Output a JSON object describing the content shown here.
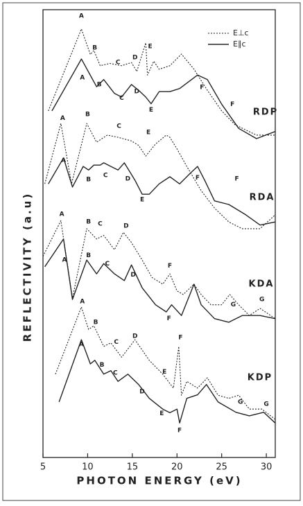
{
  "chart_data": {
    "type": "line",
    "x_label": "PHOTON ENERGY (eV)",
    "y_label": "REFLECTIVITY (a.u)",
    "xlim": [
      5,
      31
    ],
    "xticks": [
      5,
      10,
      15,
      20,
      25,
      30
    ],
    "ylim": [
      0,
      100
    ],
    "color": "#222222",
    "legend": [
      {
        "name": "E⊥c",
        "dash": "2,2"
      },
      {
        "name": "E∥c",
        "dash": "none"
      }
    ],
    "samples": [
      {
        "name": "RDP",
        "curves": [
          {
            "x": [
              5.6,
              9.3,
              10.3,
              10.7,
              11.4,
              12.5,
              13.8,
              14.9,
              15.5,
              16.5,
              16.7,
              17.4,
              18,
              19.2,
              20.5,
              21.9,
              23.4,
              25,
              26.5,
              28.9,
              31
            ],
            "values": [
              77.4,
              95.7,
              90,
              90.9,
              87.5,
              88,
              87.5,
              88.2,
              86.2,
              92.6,
              85.4,
              88.5,
              86.7,
              87.5,
              90.1,
              86.7,
              82,
              77.4,
              74.3,
              72,
              72
            ]
          },
          {
            "x": [
              6,
              9.3,
              11,
              11.8,
              13,
              13.8,
              14.9,
              15.7,
              16.5,
              17.1,
              18,
              19.2,
              20.3,
              22.3,
              23.4,
              25,
              26.9,
              28.9,
              31
            ],
            "values": [
              77.4,
              89,
              82.8,
              84.4,
              81.3,
              80.5,
              83.3,
              82,
              80.5,
              79,
              81.7,
              81.7,
              82.4,
              85.4,
              84.4,
              78.9,
              73.5,
              71.2,
              72.8
            ]
          }
        ],
        "labels": [
          {
            "text": "A",
            "x": 9.3,
            "y": 98.6
          },
          {
            "text": "B",
            "x": 10.8,
            "y": 91.5
          },
          {
            "text": "C",
            "x": 13.4,
            "y": 88.2
          },
          {
            "text": "D",
            "x": 15.3,
            "y": 89.3
          },
          {
            "text": "E",
            "x": 17,
            "y": 91.8
          },
          {
            "text": "A",
            "x": 9.4,
            "y": 84.8
          },
          {
            "text": "B",
            "x": 11.3,
            "y": 83.3
          },
          {
            "text": "C",
            "x": 13.8,
            "y": 80.3
          },
          {
            "text": "D",
            "x": 15.5,
            "y": 81.7
          },
          {
            "text": "E",
            "x": 17.1,
            "y": 77.6
          },
          {
            "text": "F",
            "x": 22.8,
            "y": 82.7
          },
          {
            "text": "F",
            "x": 26.2,
            "y": 78.9
          }
        ]
      },
      {
        "name": "RDA",
        "curves": [
          {
            "x": [
              5.2,
              7,
              8.2,
              9.9,
              11,
              12.2,
              13.4,
              14.9,
              15.7,
              16.5,
              17.6,
              18.8,
              19.2,
              20,
              21.1,
              22.7,
              24.2,
              25.8,
              27.3,
              29.3,
              31
            ],
            "values": [
              61.1,
              74.6,
              61.1,
              74.6,
              70.4,
              72,
              71.5,
              70.7,
              69.7,
              67.3,
              70,
              72,
              71.5,
              68.9,
              65,
              59.6,
              55.7,
              52.6,
              51.1,
              51.1,
              54.2
            ]
          },
          {
            "x": [
              5.6,
              7.3,
              8.3,
              9.5,
              10.1,
              10.7,
              11.4,
              11.8,
              12.6,
              13.4,
              14.1,
              15.3,
              16.1,
              16.9,
              18,
              19.2,
              20.3,
              21.5,
              22.3,
              23.1,
              24.2,
              25.8,
              27.7,
              29.3,
              31
            ],
            "values": [
              61.1,
              66.9,
              60.4,
              65,
              64.2,
              65.3,
              65.3,
              65.8,
              65,
              64.2,
              65.8,
              61.9,
              58.8,
              58.8,
              61.1,
              62.7,
              61.1,
              63.5,
              65,
              61.9,
              57.3,
              56.5,
              54.2,
              51.9,
              52.6
            ]
          }
        ],
        "labels": [
          {
            "text": "A",
            "x": 7.2,
            "y": 75.8
          },
          {
            "text": "B",
            "x": 10,
            "y": 76.6
          },
          {
            "text": "C",
            "x": 13.5,
            "y": 74
          },
          {
            "text": "E",
            "x": 16.8,
            "y": 72.6
          },
          {
            "text": "A",
            "x": 7.3,
            "y": 66.3
          },
          {
            "text": "B",
            "x": 10.1,
            "y": 62.1
          },
          {
            "text": "C",
            "x": 12,
            "y": 63
          },
          {
            "text": "D",
            "x": 14.5,
            "y": 62.2
          },
          {
            "text": "E",
            "x": 16.1,
            "y": 57.6
          },
          {
            "text": "F",
            "x": 22.3,
            "y": 62.5
          },
          {
            "text": "F",
            "x": 26.7,
            "y": 62.2
          }
        ]
      },
      {
        "name": "KDA",
        "curves": [
          {
            "x": [
              5,
              7,
              8.3,
              9.9,
              11,
              11.8,
              13,
              14,
              14.9,
              16.1,
              17.2,
              18.4,
              19.2,
              20,
              20.7,
              21.9,
              22.7,
              23.8,
              25,
              25.9,
              26.9,
              28.1,
              29.3,
              31
            ],
            "values": [
              44.9,
              52.9,
              35.6,
              51.1,
              48.8,
              49.6,
              46.4,
              50.3,
              48,
              44.1,
              40.2,
              38.7,
              41,
              37.2,
              36.4,
              38.7,
              36.4,
              34.1,
              34.1,
              36.4,
              34.1,
              31.7,
              33.3,
              31
            ]
          },
          {
            "x": [
              5.2,
              7.3,
              8.3,
              9.9,
              11,
              11.8,
              13,
              14.1,
              14.9,
              16.1,
              17.6,
              18.8,
              19.4,
              20.5,
              21.9,
              22.7,
              24.2,
              25.8,
              27.3,
              29.3,
              31
            ],
            "values": [
              42.6,
              48.8,
              35.3,
              44.1,
              41,
              43.3,
              41,
              39.5,
              43,
              37.9,
              34.1,
              32.5,
              34.1,
              31.7,
              38.7,
              34.1,
              31,
              30.2,
              31.7,
              31.7,
              31
            ]
          }
        ],
        "labels": [
          {
            "text": "A",
            "x": 7.1,
            "y": 54.3
          },
          {
            "text": "B",
            "x": 10.1,
            "y": 52.6
          },
          {
            "text": "C",
            "x": 11.4,
            "y": 52.2
          },
          {
            "text": "D",
            "x": 14.3,
            "y": 51.7
          },
          {
            "text": "A",
            "x": 7.4,
            "y": 44.1
          },
          {
            "text": "B",
            "x": 10.1,
            "y": 45.1
          },
          {
            "text": "C",
            "x": 12.2,
            "y": 43.3
          },
          {
            "text": "D",
            "x": 15.1,
            "y": 40.8
          },
          {
            "text": "F",
            "x": 19.2,
            "y": 42.8
          },
          {
            "text": "F",
            "x": 19.1,
            "y": 31
          },
          {
            "text": "G",
            "x": 26.3,
            "y": 34.1
          },
          {
            "text": "G",
            "x": 29.5,
            "y": 35.3
          }
        ]
      },
      {
        "name": "KDP",
        "curves": [
          {
            "x": [
              6.4,
              9.3,
              10.1,
              10.7,
              11.8,
              12.6,
              13.8,
              15.3,
              16.9,
              18.4,
              19.6,
              20.2,
              20.5,
              21.1,
              22.3,
              23.4,
              24.6,
              25.8,
              26.9,
              28.1,
              29.5,
              31
            ],
            "values": [
              18.6,
              33.6,
              28.6,
              29.4,
              24.8,
              25.6,
              22.4,
              26.3,
              21.7,
              18.6,
              15.5,
              24.8,
              13.9,
              17,
              15.5,
              17.8,
              13.9,
              13.2,
              13.9,
              10.8,
              10.8,
              8.5
            ]
          },
          {
            "x": [
              6.8,
              9.3,
              10.3,
              10.8,
              11.8,
              12.6,
              13.4,
              14.5,
              15.7,
              16.9,
              18.4,
              19.2,
              20,
              20.3,
              21.1,
              22.3,
              23.3,
              24.6,
              26.6,
              28.1,
              29.7,
              31
            ],
            "values": [
              12.4,
              26.3,
              20.9,
              21.7,
              18.6,
              19.4,
              17,
              18.6,
              16.3,
              13.2,
              10.8,
              10,
              10.8,
              7.7,
              13.2,
              14,
              16.3,
              12.4,
              10.1,
              9.3,
              10.1,
              7.7
            ]
          }
        ],
        "labels": [
          {
            "text": "A",
            "x": 9.4,
            "y": 34.8
          },
          {
            "text": "B",
            "x": 10.9,
            "y": 30.2
          },
          {
            "text": "C",
            "x": 13.2,
            "y": 25.8
          },
          {
            "text": "D",
            "x": 15.3,
            "y": 27.1
          },
          {
            "text": "E",
            "x": 18.6,
            "y": 19.1
          },
          {
            "text": "F",
            "x": 20.4,
            "y": 26.8
          },
          {
            "text": "A",
            "x": 9.3,
            "y": 25.2
          },
          {
            "text": "B",
            "x": 11.6,
            "y": 20.7
          },
          {
            "text": "C",
            "x": 13.1,
            "y": 18.9
          },
          {
            "text": "D",
            "x": 16.1,
            "y": 14.7
          },
          {
            "text": "E",
            "x": 18.3,
            "y": 9.8
          },
          {
            "text": "F",
            "x": 20.3,
            "y": 6
          },
          {
            "text": "G",
            "x": 27.1,
            "y": 12.4
          },
          {
            "text": "G",
            "x": 30,
            "y": 11.9
          }
        ]
      }
    ]
  }
}
